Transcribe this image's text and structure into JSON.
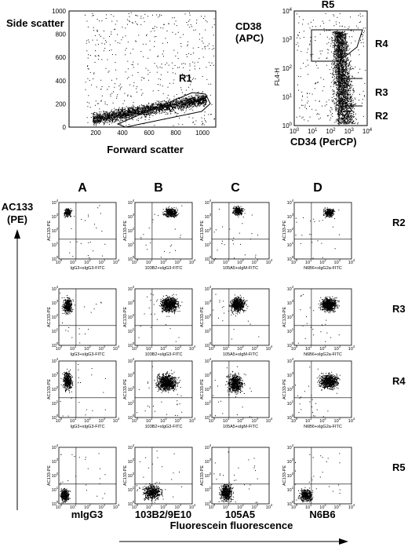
{
  "top_left": {
    "y_label": "Side scatter",
    "x_label": "Forward  scatter",
    "region": "R1",
    "yticks": [
      "0",
      "200",
      "400",
      "600",
      "800",
      "1000"
    ],
    "xticks": [
      "200",
      "400",
      "600",
      "800",
      "1000"
    ]
  },
  "top_right": {
    "y_label_1": "CD38",
    "y_label_2": "(APC)",
    "axis_name": "FL4-H",
    "x_label": "CD34  (PerCP)",
    "regions": [
      "R5",
      "R4",
      "R3",
      "R2"
    ]
  },
  "log_ticks": {
    "base": "10",
    "exponents": [
      "0",
      "1",
      "2",
      "3",
      "4"
    ]
  },
  "grid": {
    "y_axis_1": "AC133",
    "y_axis_2": "(PE)",
    "x_axis": "Fluorescein  fluorescence",
    "panel_y_label": "AC133-PE",
    "columns": [
      {
        "letter": "A",
        "name": "mIgG3",
        "x_label": "IgG3+sIgG3-FITC"
      },
      {
        "letter": "B",
        "name": "103B2/9E10",
        "x_label": "103B2+sIgG3-FITC"
      },
      {
        "letter": "C",
        "name": "105A5",
        "x_label": "105A5+sIgM-FITC"
      },
      {
        "letter": "D",
        "name": "N6B6",
        "x_label": "N6B6+sIgG2a-FITC"
      }
    ],
    "rows": [
      "R2",
      "R3",
      "R4",
      "R5"
    ]
  }
}
